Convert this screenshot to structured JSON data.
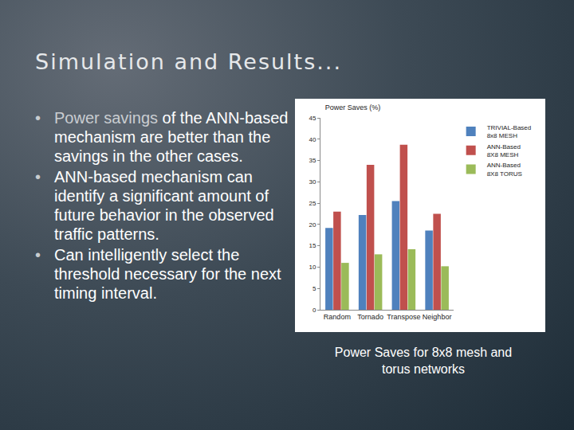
{
  "title": "Simulation and Results...",
  "bullets": [
    [
      {
        "text": "Power savings",
        "bold": true
      },
      {
        "text": " of the ANN-based mechanism are better than the savings in the other cases.",
        "bold": false
      }
    ],
    [
      {
        "text": "ANN-based mechanism can identify a significant amount of future behavior in the observed traffic patterns.",
        "bold": false
      }
    ],
    [
      {
        "text": "Can intelligently select the threshold necessary for the next timing interval.",
        "bold": false
      }
    ]
  ],
  "caption": "Power Saves for 8x8 mesh and torus networks",
  "chart_data": {
    "type": "bar",
    "title": "Power Saves (%)",
    "categories": [
      "Random",
      "Tornado",
      "Transpose",
      "Neighbor"
    ],
    "series": [
      {
        "name": "TRIVIAL-Based 8x8 MESH",
        "color": "#4f81bd",
        "values": [
          19.2,
          22.2,
          25.5,
          18.6
        ]
      },
      {
        "name": "ANN-Based 8X8 MESH",
        "color": "#c0504d",
        "values": [
          23,
          34,
          38.7,
          22.5
        ]
      },
      {
        "name": "ANN-Based 8X8 TORUS",
        "color": "#9bbb59",
        "values": [
          11,
          13,
          14.2,
          10.2
        ]
      }
    ],
    "ylim": [
      0,
      45
    ],
    "yticks": [
      0,
      5,
      10,
      15,
      20,
      25,
      30,
      35,
      40,
      45
    ],
    "grid": false,
    "legend": "right"
  }
}
